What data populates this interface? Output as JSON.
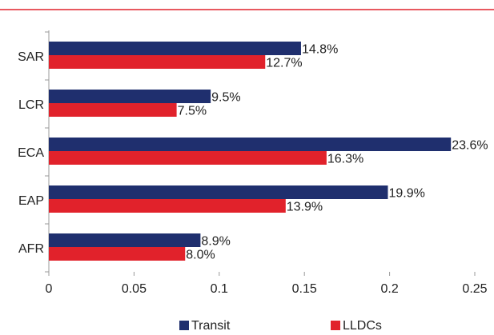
{
  "chart_data": {
    "type": "hbar",
    "categories": [
      "SAR",
      "LCR",
      "ECA",
      "EAP",
      "AFR"
    ],
    "series": [
      {
        "name": "Transit",
        "color": "#1f2f6e",
        "values": [
          0.148,
          0.095,
          0.236,
          0.199,
          0.089
        ],
        "value_labels": [
          "14.8%",
          "9.5%",
          "23.6%",
          "19.9%",
          "8.9%"
        ]
      },
      {
        "name": "LLDCs",
        "color": "#e1222b",
        "values": [
          0.127,
          0.075,
          0.163,
          0.139,
          0.08
        ],
        "value_labels": [
          "12.7%",
          "7.5%",
          "16.3%",
          "13.9%",
          "8.0%"
        ]
      }
    ],
    "xlim": [
      0,
      0.25
    ],
    "xticks": [
      0,
      0.05,
      0.1,
      0.15,
      0.2,
      0.25
    ],
    "legend": "bottom"
  }
}
